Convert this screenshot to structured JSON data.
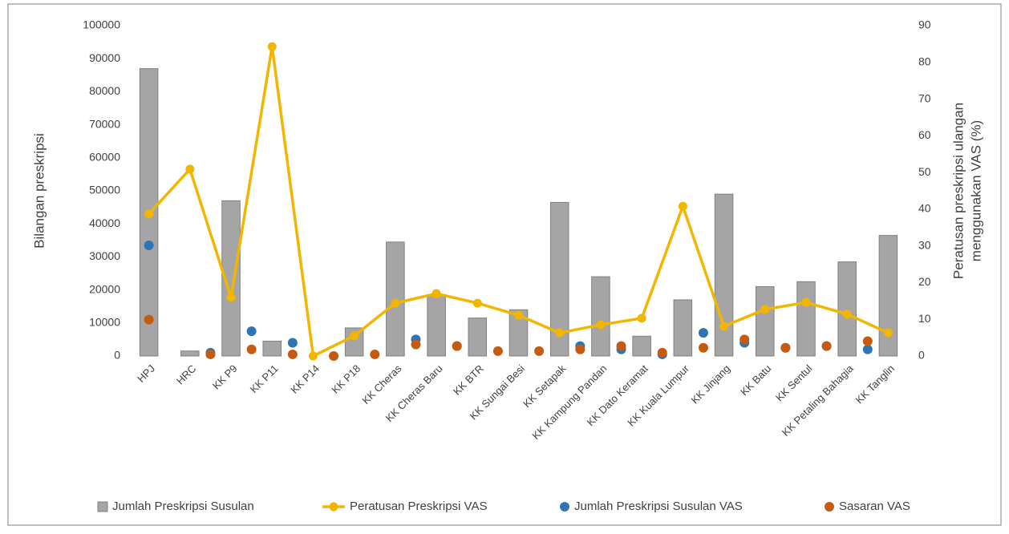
{
  "chart_data": {
    "type": "combo",
    "y_label": "Bilangan preskripsi",
    "y2_label": [
      "Peratusan preskripsi ulangan",
      "menggunakan VAS (%)"
    ],
    "categories": [
      "HPJ",
      "HRC",
      "KK P9",
      "KK P11",
      "KK P14",
      "KK P18",
      "KK Cheras",
      "KK Cheras Baru",
      "KK BTR",
      "KK Sungai Besi",
      "KK Setapak",
      "KK Kampung Pandan",
      "KK Dato Keramat",
      "KK Kuala Lumpur",
      "KK Jinjang",
      "KK Batu",
      "KK Sentul",
      "KK Petaling Bahagia",
      "KK Tanglin"
    ],
    "ylim": [
      0,
      100000
    ],
    "yticks": [
      0,
      10000,
      20000,
      30000,
      40000,
      50000,
      60000,
      70000,
      80000,
      90000,
      100000
    ],
    "y2lim": [
      0,
      90
    ],
    "y2ticks": [
      0,
      10,
      20,
      30,
      40,
      50,
      60,
      70,
      80,
      90
    ],
    "series": [
      {
        "name": "Jumlah Preskripsi Susulan",
        "kind": "bar",
        "color": "#a5a5a5",
        "values": [
          87000,
          1500,
          47000,
          4500,
          0,
          8500,
          34500,
          18500,
          11500,
          14000,
          46500,
          24000,
          6000,
          17000,
          49000,
          21000,
          22500,
          28500,
          36500
        ]
      },
      {
        "name": "Peratusan Preskripsi VAS",
        "kind": "line",
        "axis": "y2",
        "color": "#f2b600",
        "values": [
          38.7,
          50.9,
          15.9,
          84.3,
          0,
          5.5,
          14.4,
          17,
          14.4,
          11.1,
          6.3,
          8.5,
          10.3,
          40.8,
          8.1,
          12.7,
          14.6,
          11.4,
          6.3
        ]
      },
      {
        "name": "Jumlah Preskripsi Susulan VAS",
        "kind": "dot",
        "color": "#2e75b6",
        "values": [
          33500,
          1000,
          7500,
          4000,
          null,
          null,
          5000,
          3000,
          null,
          null,
          3000,
          2000,
          500,
          7000,
          4000,
          2500,
          3000,
          2000,
          null
        ]
      },
      {
        "name": "Sasaran VAS",
        "kind": "dot",
        "color": "#c55a11",
        "values": [
          11000,
          500,
          2000,
          500,
          0,
          500,
          3500,
          3000,
          1500,
          1500,
          2000,
          3000,
          1000,
          2500,
          5000,
          2500,
          3000,
          4500,
          null
        ]
      }
    ],
    "legend": "bottom"
  }
}
